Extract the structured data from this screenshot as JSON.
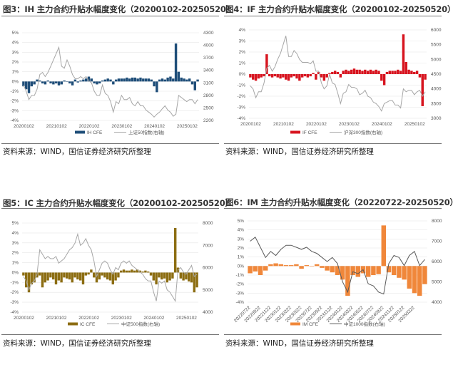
{
  "panels": [
    {
      "title": "图3：IH 主力合约升贴水幅度变化（20200102-20250520）",
      "source": "资料来源：WIND，国信证券经济研究所整理"
    },
    {
      "title": "图4：IF 主力合约升贴水幅度变化（20200102-20250520）",
      "source": "资料来源：WIND，国信证券经济研究所整理"
    },
    {
      "title": "图5：IC 主力合约升贴水幅度变化（20200102-20250520）",
      "source": "资料来源：WIND，国信证券经济研究所整理"
    },
    {
      "title": "图6：IM 主力合约升贴水幅度变化（20220722-20250520）",
      "source": "资料来源：WIND，国信证券经济研究所整理"
    }
  ],
  "chart_data": [
    {
      "type": "bar+line",
      "title": "图3：IH 主力合约升贴水幅度变化（20200102-20250520）",
      "ylim": [
        -4,
        5
      ],
      "y_ticks": [
        "5%",
        "4%",
        "3%",
        "2%",
        "1%",
        "0%",
        "-1%",
        "-2%",
        "-3%",
        "-4%"
      ],
      "y2lim": [
        2200,
        4300
      ],
      "y2_ticks": [
        "4300",
        "4000",
        "3700",
        "3400",
        "3100",
        "2800",
        "2500",
        "2200"
      ],
      "x_ticks": [
        "20200102",
        "20210102",
        "20220102",
        "20230102",
        "20240102",
        "20250102"
      ],
      "grid": true,
      "legend": "bottom",
      "x": [
        "2020-01",
        "2020-02",
        "2020-03",
        "2020-04",
        "2020-05",
        "2020-06",
        "2020-07",
        "2020-08",
        "2020-09",
        "2020-10",
        "2020-11",
        "2020-12",
        "2021-01",
        "2021-02",
        "2021-03",
        "2021-04",
        "2021-05",
        "2021-06",
        "2021-07",
        "2021-08",
        "2021-09",
        "2021-10",
        "2021-11",
        "2021-12",
        "2022-01",
        "2022-02",
        "2022-03",
        "2022-04",
        "2022-05",
        "2022-06",
        "2022-07",
        "2022-08",
        "2022-09",
        "2022-10",
        "2022-11",
        "2022-12",
        "2023-01",
        "2023-02",
        "2023-03",
        "2023-04",
        "2023-05",
        "2023-06",
        "2023-07",
        "2023-08",
        "2023-09",
        "2023-10",
        "2023-11",
        "2023-12",
        "2024-01",
        "2024-02",
        "2024-03",
        "2024-04",
        "2024-05",
        "2024-06",
        "2024-07",
        "2024-08",
        "2024-09",
        "2024-10",
        "2024-11",
        "2024-12",
        "2025-01",
        "2025-02",
        "2025-03",
        "2025-04",
        "2025-05"
      ],
      "series": [
        {
          "name": "IH CFE",
          "kind": "bar",
          "axis": "left",
          "color": "#1f4e79",
          "values": [
            -0.5,
            -0.8,
            -1.2,
            -0.5,
            -0.3,
            0.2,
            0.1,
            -0.2,
            -0.3,
            0.1,
            -0.2,
            -0.3,
            -0.2,
            -0.4,
            -0.3,
            0.1,
            0.0,
            -0.2,
            -0.4,
            0.2,
            -0.1,
            0.1,
            0.2,
            0.3,
            0.5,
            0.3,
            -0.2,
            -0.3,
            -0.2,
            0.1,
            0.2,
            0.3,
            0.2,
            -0.3,
            0.2,
            0.3,
            0.3,
            0.3,
            0.4,
            0.3,
            0.4,
            0.4,
            0.3,
            0.4,
            0.3,
            0.3,
            0.3,
            0.2,
            -0.5,
            -1.1,
            0.2,
            0.3,
            0.2,
            0.4,
            0.5,
            0.3,
            3.9,
            1.0,
            0.4,
            0.3,
            0.2,
            0.3,
            -0.3,
            -0.9,
            0.2
          ]
        },
        {
          "name": "上证50指数(右轴)",
          "kind": "line",
          "axis": "right",
          "color": "#a6a6a6",
          "values": [
            3050,
            2900,
            2700,
            2800,
            2800,
            2950,
            3300,
            3350,
            3250,
            3350,
            3500,
            3650,
            3800,
            3950,
            3500,
            3450,
            3650,
            3500,
            3300,
            3200,
            3200,
            3250,
            3200,
            3250,
            3150,
            3100,
            2900,
            2800,
            2800,
            3050,
            2850,
            2800,
            2650,
            2400,
            2650,
            2600,
            2800,
            2700,
            2700,
            2750,
            2600,
            2550,
            2650,
            2550,
            2550,
            2450,
            2400,
            2350,
            2280,
            2350,
            2400,
            2480,
            2550,
            2450,
            2400,
            2300,
            2350,
            2800,
            2750,
            2700,
            2650,
            2700,
            2700,
            2600,
            2700
          ]
        }
      ]
    },
    {
      "type": "bar+line",
      "title": "图4：IF 主力合约升贴水幅度变化（20200102-20250520）",
      "ylim": [
        -4,
        4
      ],
      "y_ticks": [
        "4%",
        "3%",
        "2%",
        "1%",
        "0%",
        "-1%",
        "-2%",
        "-3%",
        "-4%"
      ],
      "y2lim": [
        3000,
        6000
      ],
      "y2_ticks": [
        "6000",
        "5500",
        "5000",
        "4500",
        "4000",
        "3500",
        "3000"
      ],
      "x_ticks": [
        "20200102",
        "20210102",
        "20220102",
        "20230102",
        "20240102",
        "20250102"
      ],
      "grid": true,
      "legend": "bottom",
      "x": [
        "2020-01",
        "2020-02",
        "2020-03",
        "2020-04",
        "2020-05",
        "2020-06",
        "2020-07",
        "2020-08",
        "2020-09",
        "2020-10",
        "2020-11",
        "2020-12",
        "2021-01",
        "2021-02",
        "2021-03",
        "2021-04",
        "2021-05",
        "2021-06",
        "2021-07",
        "2021-08",
        "2021-09",
        "2021-10",
        "2021-11",
        "2021-12",
        "2022-01",
        "2022-02",
        "2022-03",
        "2022-04",
        "2022-05",
        "2022-06",
        "2022-07",
        "2022-08",
        "2022-09",
        "2022-10",
        "2022-11",
        "2022-12",
        "2023-01",
        "2023-02",
        "2023-03",
        "2023-04",
        "2023-05",
        "2023-06",
        "2023-07",
        "2023-08",
        "2023-09",
        "2023-10",
        "2023-11",
        "2023-12",
        "2024-01",
        "2024-02",
        "2024-03",
        "2024-04",
        "2024-05",
        "2024-06",
        "2024-07",
        "2024-08",
        "2024-09",
        "2024-10",
        "2024-11",
        "2024-12",
        "2025-01",
        "2025-02",
        "2025-03",
        "2025-04",
        "2025-05"
      ],
      "series": [
        {
          "name": "IF CFE",
          "kind": "bar",
          "axis": "left",
          "color": "#d7141f",
          "values": [
            -0.3,
            -0.5,
            -0.6,
            -0.4,
            -0.3,
            -0.2,
            1.8,
            -0.2,
            -0.3,
            -0.2,
            -0.3,
            -0.4,
            -0.3,
            -0.5,
            -0.6,
            -0.3,
            -0.2,
            -0.4,
            -0.6,
            -0.3,
            -0.2,
            -0.3,
            -0.2,
            0.1,
            -0.5,
            0.2,
            -0.3,
            -0.6,
            -0.3,
            0.1,
            0.2,
            0.3,
            0.2,
            -0.3,
            0.3,
            0.4,
            0.3,
            0.4,
            0.5,
            0.4,
            0.4,
            0.3,
            0.4,
            0.3,
            0.4,
            0.3,
            0.4,
            0.3,
            -0.6,
            -1.0,
            0.2,
            0.3,
            0.3,
            0.3,
            0.4,
            0.3,
            3.6,
            1.1,
            0.4,
            0.3,
            0.2,
            0.3,
            -0.3,
            -2.9,
            -0.5
          ]
        },
        {
          "name": "沪深300指数(右轴)",
          "kind": "line",
          "axis": "right",
          "color": "#a6a6a6",
          "values": [
            4100,
            4000,
            3700,
            3900,
            3900,
            4200,
            4700,
            4800,
            4600,
            4750,
            5000,
            5200,
            5500,
            5800,
            5100,
            5100,
            5300,
            5200,
            5000,
            4900,
            4900,
            4900,
            4850,
            4950,
            4600,
            4600,
            4200,
            4000,
            4100,
            4500,
            4200,
            4150,
            3850,
            3500,
            3850,
            3900,
            4150,
            4050,
            4050,
            4000,
            3800,
            3850,
            3950,
            3750,
            3700,
            3550,
            3500,
            3400,
            3250,
            3500,
            3550,
            3600,
            3600,
            3450,
            3450,
            3350,
            4000,
            3900,
            3950,
            3950,
            3800,
            3900,
            3950,
            3750,
            3900
          ]
        }
      ]
    },
    {
      "type": "bar+line",
      "title": "图5：IC 主力合约升贴水幅度变化（20200102-20250520）",
      "ylim": [
        -4,
        5
      ],
      "y_ticks": [
        "5%",
        "4%",
        "3%",
        "2%",
        "1%",
        "0%",
        "-1%",
        "-2%",
        "-3%",
        "-4%"
      ],
      "y2lim": [
        4000,
        8000
      ],
      "y2_ticks": [
        "8000",
        "7000",
        "6000",
        "5000",
        "4000"
      ],
      "x_ticks": [
        "20200102",
        "20210102",
        "20220102",
        "20230102",
        "20240102",
        "20250102"
      ],
      "grid": true,
      "legend": "bottom",
      "x": [
        "2020-01",
        "2020-02",
        "2020-03",
        "2020-04",
        "2020-05",
        "2020-06",
        "2020-07",
        "2020-08",
        "2020-09",
        "2020-10",
        "2020-11",
        "2020-12",
        "2021-01",
        "2021-02",
        "2021-03",
        "2021-04",
        "2021-05",
        "2021-06",
        "2021-07",
        "2021-08",
        "2021-09",
        "2021-10",
        "2021-11",
        "2021-12",
        "2022-01",
        "2022-02",
        "2022-03",
        "2022-04",
        "2022-05",
        "2022-06",
        "2022-07",
        "2022-08",
        "2022-09",
        "2022-10",
        "2022-11",
        "2022-12",
        "2023-01",
        "2023-02",
        "2023-03",
        "2023-04",
        "2023-05",
        "2023-06",
        "2023-07",
        "2023-08",
        "2023-09",
        "2023-10",
        "2023-11",
        "2023-12",
        "2024-01",
        "2024-02",
        "2024-03",
        "2024-04",
        "2024-05",
        "2024-06",
        "2024-07",
        "2024-08",
        "2024-09",
        "2024-10",
        "2024-11",
        "2024-12",
        "2025-01",
        "2025-02",
        "2025-03",
        "2025-04",
        "2025-05"
      ],
      "series": [
        {
          "name": "IC CFE",
          "kind": "bar",
          "axis": "left",
          "color": "#8c6d12",
          "values": [
            -0.3,
            -1.5,
            -2.0,
            -1.2,
            -1.0,
            -0.5,
            -0.3,
            -1.5,
            -1.0,
            -0.8,
            -0.5,
            -0.7,
            -1.2,
            -0.8,
            -1.0,
            -0.5,
            -0.6,
            -0.7,
            -1.0,
            -0.5,
            -0.7,
            -0.8,
            -1.2,
            -0.3,
            -0.2,
            0.3,
            -0.5,
            -1.0,
            -0.7,
            -0.3,
            -0.5,
            -0.7,
            -0.8,
            -1.2,
            -0.8,
            -0.5,
            0.2,
            0.3,
            0.2,
            0.2,
            0.3,
            0.2,
            0.3,
            0.2,
            0.1,
            0.2,
            0.1,
            -0.3,
            -0.8,
            -1.2,
            -0.5,
            -0.7,
            -0.6,
            -1.0,
            -0.8,
            -0.6,
            4.5,
            0.5,
            -0.6,
            -0.8,
            -0.7,
            -0.9,
            -1.0,
            -2.0,
            -1.5
          ]
        },
        {
          "name": "中证500指数(右轴)",
          "kind": "line",
          "axis": "right",
          "color": "#a6a6a6",
          "values": [
            5600,
            5400,
            5000,
            5300,
            5400,
            5700,
            6800,
            6600,
            6400,
            6500,
            6400,
            6400,
            6500,
            6200,
            6300,
            6400,
            6600,
            6800,
            6900,
            7100,
            7500,
            7000,
            7100,
            7300,
            7000,
            6800,
            6300,
            5600,
            5900,
            6200,
            6300,
            6200,
            5900,
            5700,
            6000,
            5900,
            6200,
            6300,
            6200,
            6300,
            6100,
            6000,
            5900,
            5800,
            5700,
            5500,
            5400,
            5400,
            4900,
            4500,
            5400,
            5300,
            5400,
            5000,
            4900,
            4700,
            4500,
            5900,
            6000,
            5800,
            5700,
            5900,
            6100,
            5600,
            5700
          ]
        }
      ]
    },
    {
      "type": "bar+line",
      "title": "图6：IM 主力合约升贴水幅度变化（20220722-20250520）",
      "ylim": [
        -4,
        5
      ],
      "y_ticks": [
        "5%",
        "4%",
        "3%",
        "2%",
        "1%",
        "0%",
        "-1%",
        "-2%",
        "-3%",
        "-4%"
      ],
      "y2lim": [
        4000,
        8000
      ],
      "y2_ticks": [
        "8000",
        "7000",
        "6000",
        "5000",
        "4000"
      ],
      "x_ticks": [
        "20220722",
        "20220922",
        "20221122",
        "20230122",
        "20230322",
        "20230522",
        "20230722",
        "20230922",
        "20231122",
        "20240122",
        "20240322",
        "20240522",
        "20240722",
        "20240922",
        "20241122",
        "20250122",
        "20250322"
      ],
      "grid": true,
      "legend": "bottom",
      "x": [
        "2022-07",
        "2022-08",
        "2022-09",
        "2022-10",
        "2022-11",
        "2022-12",
        "2023-01",
        "2023-02",
        "2023-03",
        "2023-04",
        "2023-05",
        "2023-06",
        "2023-07",
        "2023-08",
        "2023-09",
        "2023-10",
        "2023-11",
        "2023-12",
        "2024-01",
        "2024-02",
        "2024-03",
        "2024-04",
        "2024-05",
        "2024-06",
        "2024-07",
        "2024-08",
        "2024-09",
        "2024-10",
        "2024-11",
        "2024-12",
        "2025-01",
        "2025-02",
        "2025-03",
        "2025-04",
        "2025-05"
      ],
      "series": [
        {
          "name": "IM CFE",
          "kind": "bar",
          "axis": "left",
          "color": "#f0873a",
          "values": [
            -0.8,
            -0.6,
            -1.0,
            -0.5,
            0.2,
            0.3,
            0.2,
            0.1,
            0.1,
            0.2,
            -0.3,
            0.1,
            0.0,
            0.2,
            -0.2,
            -0.5,
            -0.7,
            -1.0,
            -1.5,
            -3.3,
            -1.0,
            -1.2,
            -0.8,
            -1.2,
            -1.0,
            -0.9,
            4.5,
            -0.7,
            -1.0,
            -1.3,
            -1.5,
            -2.5,
            -3.0,
            -3.3,
            -2.0
          ]
        },
        {
          "name": "中证1000指数(右轴)",
          "kind": "line",
          "axis": "right",
          "color": "#595959",
          "values": [
            7000,
            7200,
            6700,
            6200,
            6500,
            6300,
            6600,
            6800,
            6800,
            6700,
            6600,
            6700,
            6500,
            6400,
            6200,
            6000,
            6200,
            5900,
            5000,
            4500,
            5500,
            5400,
            5600,
            4900,
            4800,
            4500,
            4400,
            5900,
            6300,
            6200,
            5800,
            6300,
            6500,
            5800,
            6100
          ]
        }
      ]
    }
  ]
}
